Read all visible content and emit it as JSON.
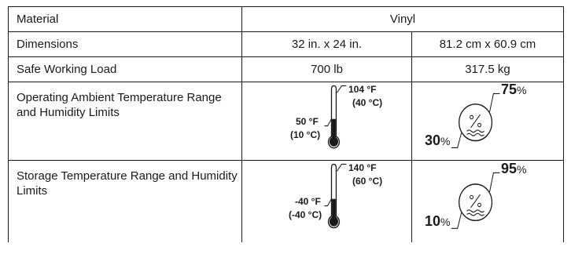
{
  "table": {
    "rows": [
      {
        "label": "Material",
        "value": "Vinyl"
      },
      {
        "label": "Dimensions",
        "imperial": "32 in. x 24 in.",
        "metric": "81.2 cm x 60.9 cm"
      },
      {
        "label": "Safe Working Load",
        "imperial": "700 lb",
        "metric": "317.5 kg"
      },
      {
        "label": "Operating Ambient Temperature Range and Humidity Limits",
        "temp_high_f": "104 °F",
        "temp_high_c": "(40 °C)",
        "temp_low_f": "50 °F",
        "temp_low_c": "(10 °C)",
        "humidity_high": "75",
        "humidity_low": "30",
        "percent_sign": "%",
        "icon": "temperature-range-icon",
        "humidity_icon": "humidity-range-icon"
      },
      {
        "label": "Storage Temperature Range and Humidity Limits",
        "temp_high_f": "140 °F",
        "temp_high_c": "(60 °C)",
        "temp_low_f": "-40 °F",
        "temp_low_c": "(-40 °C)",
        "humidity_high": "95",
        "humidity_low": "10",
        "percent_sign": "%",
        "icon": "temperature-range-icon",
        "humidity_icon": "humidity-range-icon"
      }
    ]
  }
}
